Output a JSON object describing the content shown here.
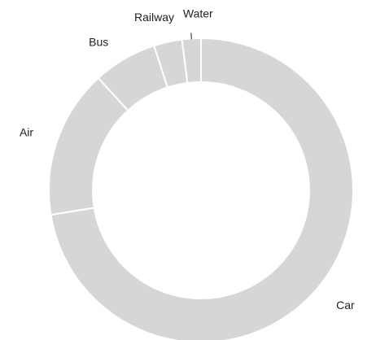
{
  "chart_data": {
    "type": "pie",
    "style": "donut",
    "categories": [
      "Car",
      "Air",
      "Bus",
      "Railway",
      "Water"
    ],
    "values": [
      72.5,
      15.8,
      6.8,
      3.0,
      2.0
    ],
    "slice_color": "#d6d6d6",
    "separator_color": "#ffffff",
    "background_color": "#ffffff",
    "label_color": "#222222",
    "title": "",
    "legend": "none"
  }
}
